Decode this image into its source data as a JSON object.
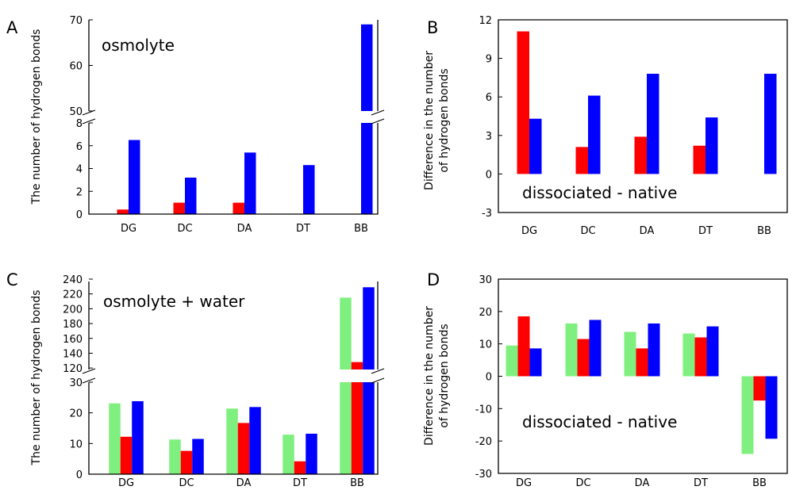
{
  "colors": {
    "green": "#7ff07f",
    "red": "#ff0000",
    "blue": "#0000ff",
    "axis": "#000000"
  },
  "chart_data": [
    {
      "panel": "A",
      "type": "bar",
      "annotation": "osmolyte",
      "ylabel": "The number of hydrogen bonds",
      "categories": [
        "DG",
        "DC",
        "DA",
        "DT",
        "BB"
      ],
      "axis_break": {
        "lower_ylim": [
          0,
          8
        ],
        "upper_ylim": [
          50,
          70
        ]
      },
      "lower_ticks": [
        "0",
        "2",
        "4",
        "6",
        "8"
      ],
      "upper_ticks": [
        "50",
        "60",
        "70"
      ],
      "series": [
        {
          "color": "red",
          "values": [
            0.4,
            1.0,
            1.0,
            0,
            0
          ]
        },
        {
          "color": "blue",
          "values": [
            6.5,
            3.2,
            5.4,
            4.3,
            69
          ]
        }
      ]
    },
    {
      "panel": "B",
      "type": "bar",
      "annotation": "dissociated - native",
      "ylabel": [
        "Difference in the number",
        "of hydrogen bonds"
      ],
      "categories": [
        "DG",
        "DC",
        "DA",
        "DT",
        "BB"
      ],
      "ylim": [
        -3,
        12
      ],
      "ticks": [
        "-3",
        "0",
        "3",
        "6",
        "9",
        "12"
      ],
      "series": [
        {
          "color": "red",
          "values": [
            11.1,
            2.1,
            2.9,
            2.2,
            0
          ]
        },
        {
          "color": "blue",
          "values": [
            4.3,
            6.1,
            7.8,
            4.4,
            7.8
          ]
        }
      ]
    },
    {
      "panel": "C",
      "type": "bar",
      "annotation": "osmolyte + water",
      "ylabel": "The number of hydrogen bonds",
      "categories": [
        "DG",
        "DC",
        "DA",
        "DT",
        "BB"
      ],
      "axis_break": {
        "lower_ylim": [
          0,
          30
        ],
        "upper_ylim": [
          118,
          240
        ]
      },
      "lower_ticks": [
        "0",
        "10",
        "20",
        "30"
      ],
      "upper_ticks": [
        "120",
        "140",
        "160",
        "180",
        "200",
        "220",
        "240"
      ],
      "series": [
        {
          "color": "green",
          "values": [
            23.1,
            11.3,
            21.4,
            12.9,
            215
          ]
        },
        {
          "color": "red",
          "values": [
            12.2,
            7.6,
            16.7,
            4.2,
            128
          ]
        },
        {
          "color": "blue",
          "values": [
            23.8,
            11.5,
            21.9,
            13.2,
            229
          ]
        }
      ]
    },
    {
      "panel": "D",
      "type": "bar",
      "annotation": "dissociated - native",
      "ylabel": [
        "Difference in the number",
        "of hydrogen bonds"
      ],
      "categories": [
        "DG",
        "DC",
        "DA",
        "DT",
        "BB"
      ],
      "ylim": [
        -30,
        30
      ],
      "ticks": [
        "-30",
        "-20",
        "-10",
        "0",
        "10",
        "20",
        "30"
      ],
      "series": [
        {
          "color": "green",
          "values": [
            9.5,
            16.3,
            13.7,
            13.2,
            -24
          ]
        },
        {
          "color": "red",
          "values": [
            18.5,
            11.5,
            8.6,
            12.0,
            -7.5
          ]
        },
        {
          "color": "blue",
          "values": [
            8.6,
            17.4,
            16.3,
            15.4,
            -19.3
          ]
        }
      ]
    }
  ]
}
